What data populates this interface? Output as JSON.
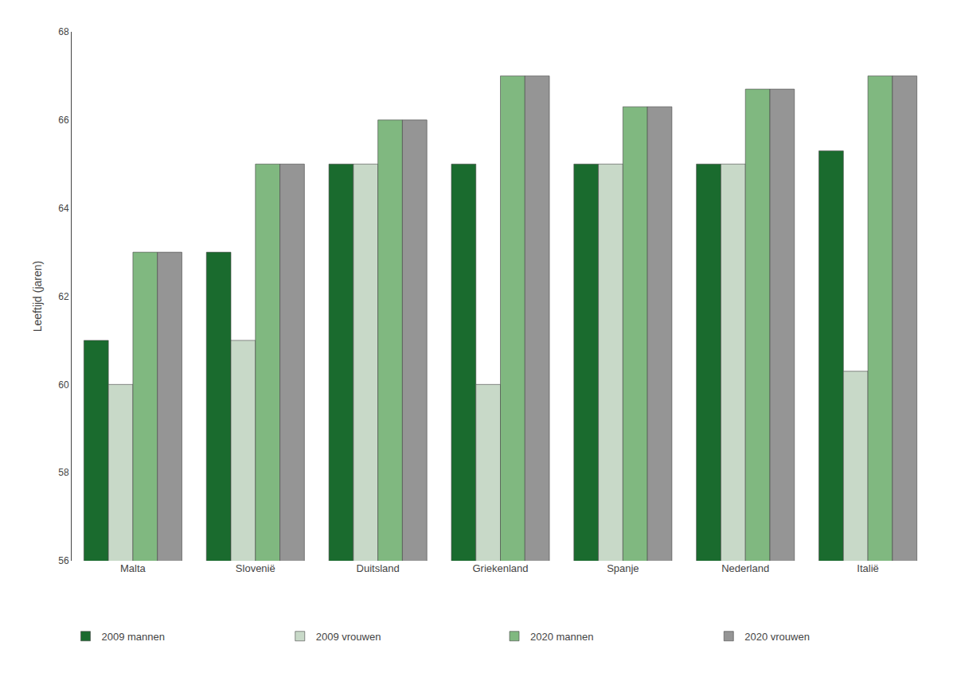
{
  "chart_data": {
    "type": "bar",
    "categories": [
      "Malta",
      "Slovenië",
      "Duitsland",
      "Griekenland",
      "Spanje",
      "Nederland",
      "Italië"
    ],
    "series": [
      {
        "name": "2009 mannen",
        "color": "#1a6b2e",
        "values": [
          61.0,
          63.0,
          65.0,
          65.0,
          65.0,
          65.0,
          65.3
        ]
      },
      {
        "name": "2009 vrouwen",
        "color": "#c8d9c8",
        "values": [
          60.0,
          61.0,
          65.0,
          60.0,
          65.0,
          65.0,
          60.3
        ]
      },
      {
        "name": "2020 mannen",
        "color": "#80b880",
        "values": [
          63.0,
          65.0,
          66.0,
          67.0,
          66.3,
          66.7,
          67.0
        ]
      },
      {
        "name": "2020 vrouwen",
        "color": "#959595",
        "values": [
          63.0,
          65.0,
          66.0,
          67.0,
          66.3,
          66.7,
          67.0
        ]
      }
    ],
    "ylabel": "Leeftijd (jaren)",
    "ylim": [
      56,
      68
    ],
    "yticks": [
      56,
      58,
      60,
      62,
      64,
      66,
      68
    ],
    "grid": false,
    "legend": "bottom"
  }
}
